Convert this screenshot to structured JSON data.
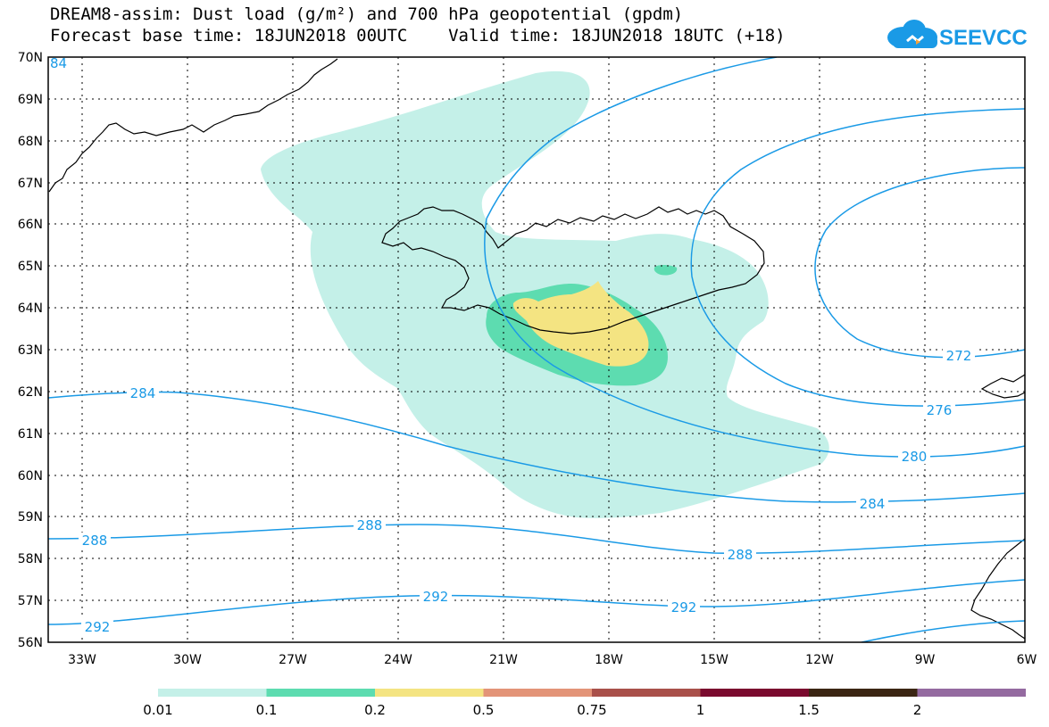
{
  "title": {
    "line1": "DREAM8-assim: Dust load (g/m²) and 700 hPa geopotential (gpdm)",
    "line2": "Forecast base time: 18JUN2018 00UTC    Valid time: 18JUN2018 18UTC (+18)"
  },
  "logo": {
    "text": "SEEVCCC",
    "icon": "cloud-icon",
    "color": "#1a9ae6"
  },
  "map": {
    "lon_labels": [
      "33W",
      "30W",
      "27W",
      "24W",
      "21W",
      "18W",
      "15W",
      "12W",
      "9W",
      "6W"
    ],
    "lat_labels": [
      "70N",
      "69N",
      "68N",
      "67N",
      "66N",
      "65N",
      "64N",
      "63N",
      "62N",
      "61N",
      "60N",
      "59N",
      "58N",
      "57N",
      "56N"
    ],
    "contour_labels": {
      "c272": "272",
      "c276": "276",
      "c280": "280",
      "c284a": "284",
      "c284b": "284",
      "c284c": "84",
      "c288a": "288",
      "c288b": "288",
      "c288c": "288",
      "c292a": "292",
      "c292b": "292",
      "c292c": "292"
    },
    "contour_color": "#1a9ae6"
  },
  "legend": {
    "colors": [
      "#c4f0e8",
      "#5ddcb0",
      "#f4e482",
      "#e39478",
      "#a9504a",
      "#7a0a2e",
      "#3b2613",
      "#946aa0"
    ],
    "labels": [
      "0.01",
      "0.1",
      "0.2",
      "0.5",
      "0.75",
      "1",
      "1.5",
      "2"
    ]
  }
}
